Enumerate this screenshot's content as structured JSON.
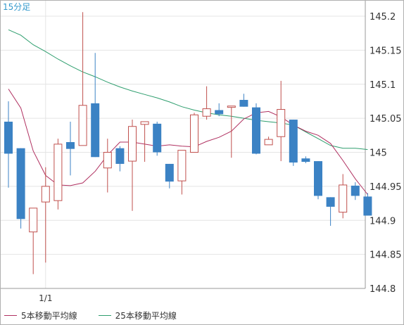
{
  "chart_data": {
    "type": "candlestick",
    "timeframe_label": "15分足",
    "x_tick_labels": [
      {
        "index": 3,
        "label": "1/1"
      }
    ],
    "y_ticks": [
      "145.2",
      "145.15",
      "145.1",
      "145.05",
      "145",
      "144.95",
      "144.9",
      "144.85",
      "144.8"
    ],
    "ylim": [
      144.8,
      145.2
    ],
    "grid": true,
    "colors": {
      "up_body_stroke": "#c0504d",
      "down_body": "#3b82c4",
      "ma5": "#b03060",
      "ma25": "#2e9e6e",
      "grid": "#e4e4e4",
      "axis_text": "#333333",
      "timeframe_text": "#3399cc"
    },
    "candles": [
      {
        "o": 145.045,
        "h": 145.075,
        "l": 144.948,
        "c": 144.998
      },
      {
        "o": 145.006,
        "h": 145.006,
        "l": 144.888,
        "c": 144.902
      },
      {
        "o": 144.883,
        "h": 144.918,
        "l": 144.821,
        "c": 144.918
      },
      {
        "o": 144.927,
        "h": 144.978,
        "l": 144.838,
        "c": 144.95
      },
      {
        "o": 144.929,
        "h": 145.02,
        "l": 144.916,
        "c": 145.012
      },
      {
        "o": 145.015,
        "h": 145.045,
        "l": 144.966,
        "c": 145.005
      },
      {
        "o": 145.01,
        "h": 145.206,
        "l": 145.01,
        "c": 145.069
      },
      {
        "o": 145.072,
        "h": 145.146,
        "l": 144.993,
        "c": 144.993
      },
      {
        "o": 144.977,
        "h": 145.02,
        "l": 144.941,
        "c": 145.0
      },
      {
        "o": 145.006,
        "h": 145.009,
        "l": 144.972,
        "c": 144.983
      },
      {
        "o": 144.987,
        "h": 145.048,
        "l": 144.914,
        "c": 145.038
      },
      {
        "o": 145.041,
        "h": 145.045,
        "l": 144.986,
        "c": 145.045
      },
      {
        "o": 145.042,
        "h": 145.045,
        "l": 144.995,
        "c": 145.0
      },
      {
        "o": 144.983,
        "h": 144.983,
        "l": 144.947,
        "c": 144.957
      },
      {
        "o": 144.958,
        "h": 145.003,
        "l": 144.938,
        "c": 145.003
      },
      {
        "o": 145.0,
        "h": 145.058,
        "l": 145.0,
        "c": 145.055
      },
      {
        "o": 145.053,
        "h": 145.097,
        "l": 145.048,
        "c": 145.064
      },
      {
        "o": 145.062,
        "h": 145.072,
        "l": 145.053,
        "c": 145.056
      },
      {
        "o": 145.066,
        "h": 145.068,
        "l": 144.992,
        "c": 145.068
      },
      {
        "o": 145.077,
        "h": 145.086,
        "l": 145.067,
        "c": 145.067
      },
      {
        "o": 145.066,
        "h": 145.072,
        "l": 144.997,
        "c": 144.998
      },
      {
        "o": 145.011,
        "h": 145.023,
        "l": 145.011,
        "c": 145.019
      },
      {
        "o": 145.023,
        "h": 145.105,
        "l": 144.987,
        "c": 145.063
      },
      {
        "o": 145.048,
        "h": 145.048,
        "l": 144.98,
        "c": 144.985
      },
      {
        "o": 144.991,
        "h": 144.994,
        "l": 144.984,
        "c": 144.986
      },
      {
        "o": 144.987,
        "h": 144.987,
        "l": 144.931,
        "c": 144.936
      },
      {
        "o": 144.934,
        "h": 144.934,
        "l": 144.892,
        "c": 144.92
      },
      {
        "o": 144.912,
        "h": 144.968,
        "l": 144.903,
        "c": 144.952
      },
      {
        "o": 144.951,
        "h": 144.956,
        "l": 144.93,
        "c": 144.936
      },
      {
        "o": 144.935,
        "h": 144.94,
        "l": 144.907,
        "c": 144.907
      }
    ],
    "ma5": [
      145.093,
      145.065,
      145.002,
      144.966,
      144.952,
      144.951,
      144.955,
      144.972,
      144.996,
      145.015,
      145.015,
      145.012,
      145.009,
      145.011,
      145.009,
      145.008,
      145.016,
      145.022,
      145.031,
      145.049,
      145.058,
      145.06,
      145.052,
      145.04,
      145.031,
      145.025,
      145.013,
      144.988,
      144.961,
      144.938
    ],
    "ma25": [
      145.18,
      145.172,
      145.158,
      145.148,
      145.137,
      145.127,
      145.118,
      145.111,
      145.103,
      145.096,
      145.09,
      145.085,
      145.08,
      145.074,
      145.067,
      145.062,
      145.058,
      145.055,
      145.053,
      145.05,
      145.047,
      145.045,
      145.043,
      145.04,
      145.03,
      145.02,
      145.01,
      145.006,
      145.006,
      145.004
    ]
  },
  "legend": {
    "ma5_label": "5本移動平均線",
    "ma25_label": "25本移動平均線"
  }
}
